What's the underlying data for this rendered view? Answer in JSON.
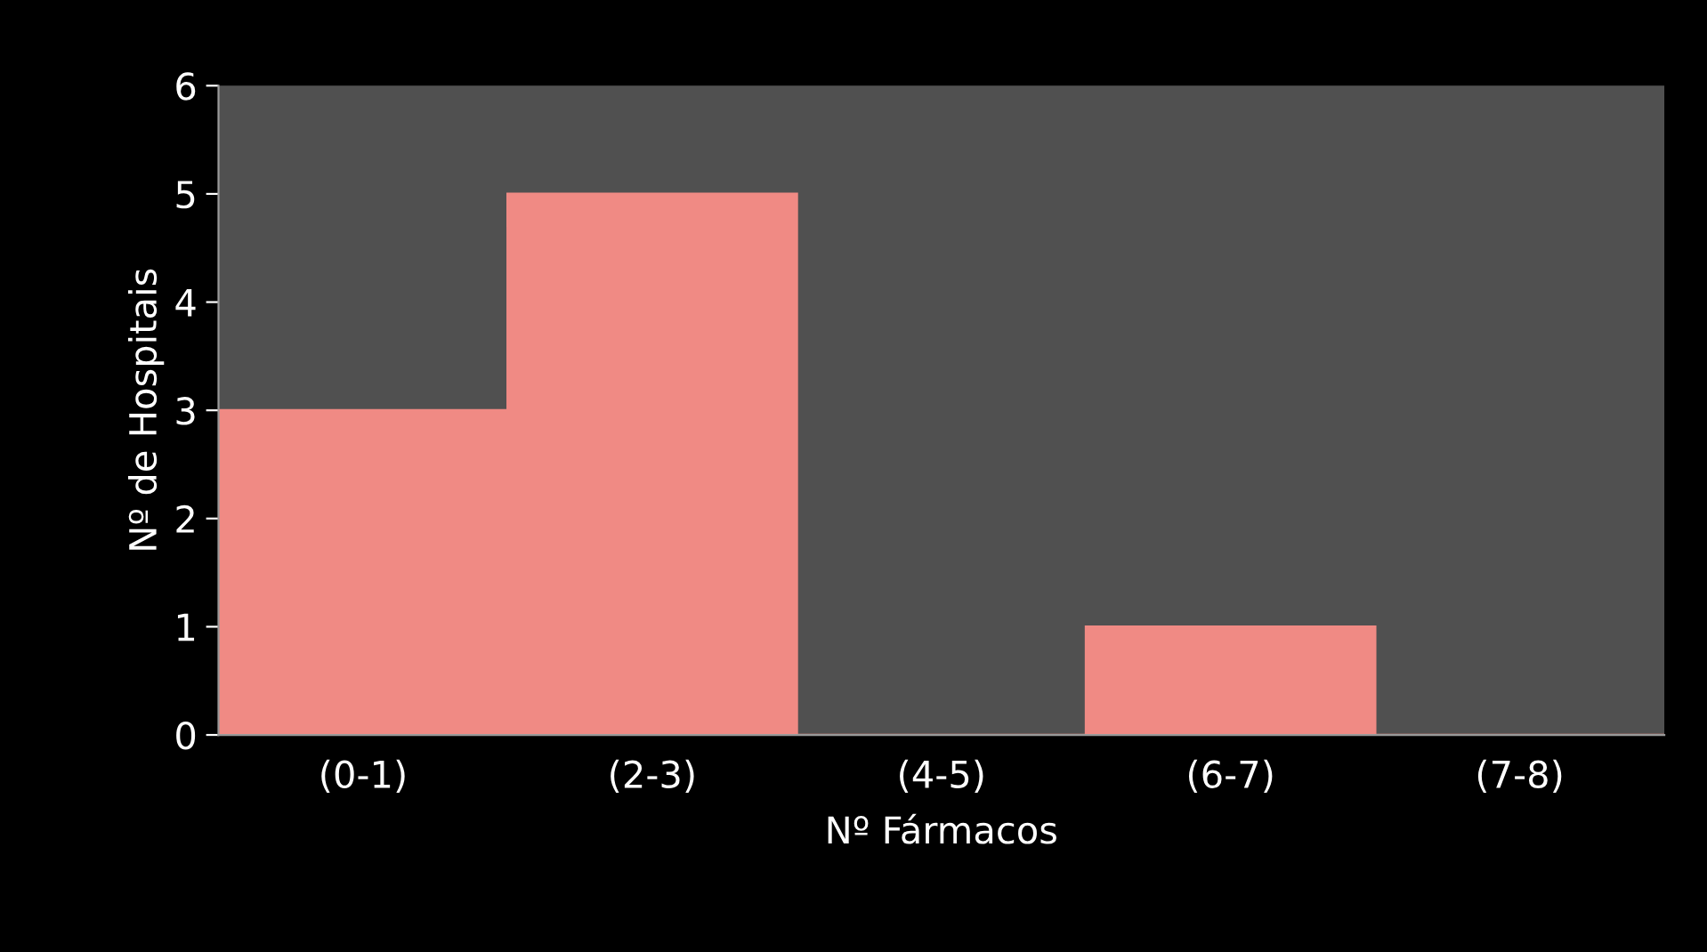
{
  "chart_data": {
    "type": "bar",
    "xlabel": "Nº Fármacos",
    "ylabel": "Nº de Hospitais",
    "categories": [
      "(0-1)",
      "(2-3)",
      "(4-5)",
      "(6-7)",
      "(7-8)"
    ],
    "values": [
      3,
      5,
      0,
      1,
      0
    ],
    "color": "#f08a84",
    "ylim": [
      0,
      6
    ],
    "yticks": [
      0,
      1,
      2,
      3,
      4,
      5,
      6
    ],
    "grid": false,
    "legend": false
  }
}
